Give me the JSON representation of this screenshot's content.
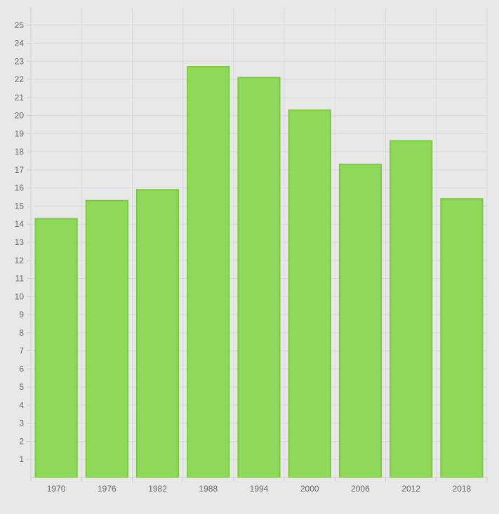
{
  "chart_data": {
    "type": "bar",
    "title": "",
    "xlabel": "",
    "ylabel": "",
    "categories": [
      "1970",
      "1976",
      "1982",
      "1988",
      "1994",
      "2000",
      "2006",
      "2012",
      "2018"
    ],
    "values": [
      14.3,
      15.3,
      15.9,
      22.7,
      22.1,
      20.3,
      17.3,
      18.6,
      15.4
    ],
    "ylim": [
      0,
      26
    ],
    "yticks": [
      1,
      2,
      3,
      4,
      5,
      6,
      7,
      8,
      9,
      10,
      11,
      12,
      13,
      14,
      15,
      16,
      17,
      18,
      19,
      20,
      21,
      22,
      23,
      24,
      25
    ],
    "grid": true,
    "legend": "none",
    "colors": {
      "bar_fill": "#8fd85a",
      "bar_stroke": "#77cc3c",
      "grid": "#d9d9d9",
      "axis": "#cfcfcf",
      "tick_text": "#666666",
      "background": "#e8e8e8"
    }
  }
}
